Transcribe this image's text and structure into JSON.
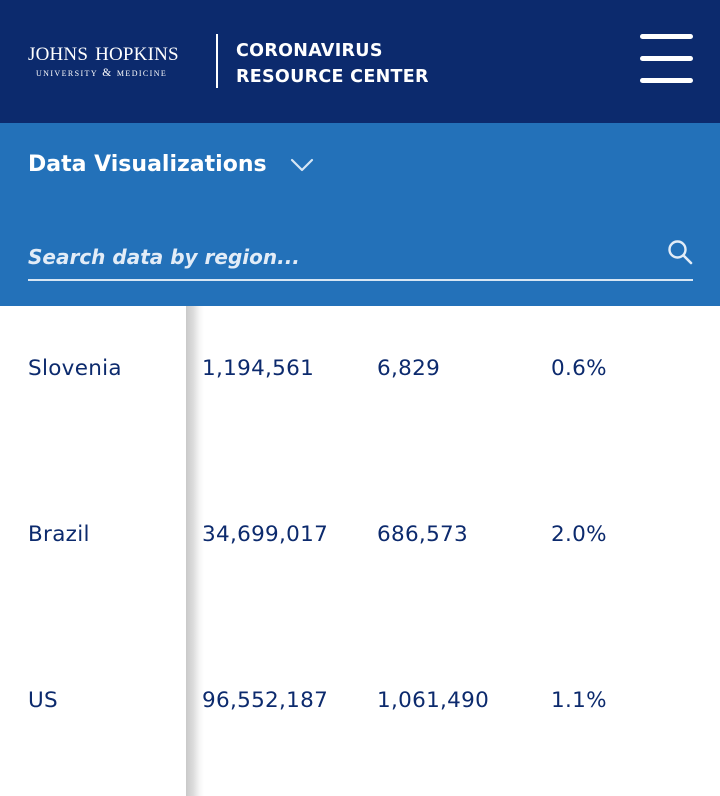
{
  "header": {
    "logo": {
      "line1": "JOHNS HOPKINS",
      "line2": "UNIVERSITY & MEDICINE"
    },
    "site_title_line1": "CORONAVIRUS",
    "site_title_line2": "RESOURCE CENTER",
    "menu_icon": "hamburger-menu-icon"
  },
  "subnav": {
    "data_visualizations_label": "Data Visualizations",
    "toggle_icon": "chevron-down-icon"
  },
  "search": {
    "placeholder": "Search data by region...",
    "icon": "search-icon"
  },
  "colors": {
    "header_bg": "#0c2a6d",
    "subnav_bg": "#2371b9",
    "table_text": "#0c2a6d"
  },
  "table": {
    "rows": [
      {
        "country": "Slovenia",
        "cases": "1,194,561",
        "deaths": "6,829",
        "rate": "0.6%"
      },
      {
        "country": "Brazil",
        "cases": "34,699,017",
        "deaths": "686,573",
        "rate": "2.0%"
      },
      {
        "country": "US",
        "cases": "96,552,187",
        "deaths": "1,061,490",
        "rate": "1.1%"
      }
    ]
  }
}
